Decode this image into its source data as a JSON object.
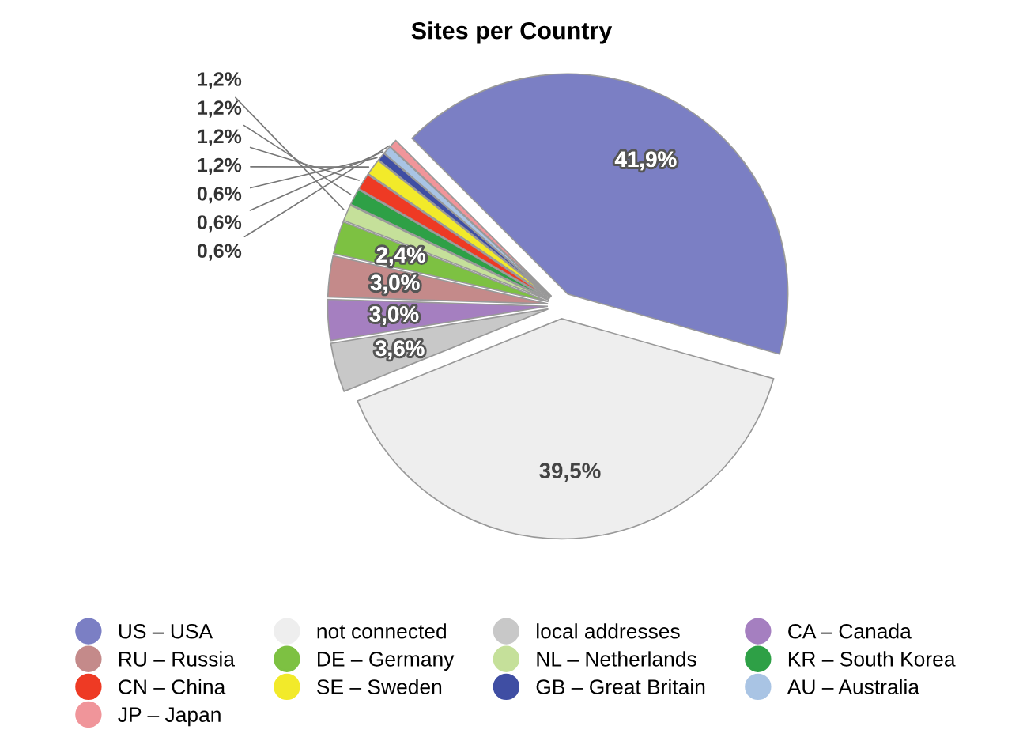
{
  "chart_data": {
    "type": "pie",
    "title": "Sites per Country",
    "categories": [
      "US – USA",
      "not connected",
      "local addresses",
      "CA – Canada",
      "RU – Russia",
      "DE – Germany",
      "NL – Netherlands",
      "KR – South Korea",
      "CN – China",
      "SE – Sweden",
      "GB – Great Britain",
      "AU – Australia",
      "JP – Japan"
    ],
    "values": [
      41.9,
      39.5,
      3.6,
      3.0,
      3.0,
      2.4,
      1.2,
      1.2,
      1.2,
      1.2,
      0.6,
      0.6,
      0.6
    ],
    "colors": [
      "#7b7fc4",
      "#eeeeee",
      "#c8c8c8",
      "#a57fc0",
      "#c48a8a",
      "#7dc142",
      "#c5e09a",
      "#2ea046",
      "#ee3a24",
      "#f2ea2a",
      "#3f4ea3",
      "#a9c4e4",
      "#f0959a"
    ],
    "value_labels": [
      "41,9%",
      "39,5%",
      "3,6%",
      "3,0%",
      "3,0%",
      "2,4%",
      "1,2%",
      "1,2%",
      "1,2%",
      "1,2%",
      "0,6%",
      "0,6%",
      "0,6%"
    ],
    "legend": "bottom"
  }
}
